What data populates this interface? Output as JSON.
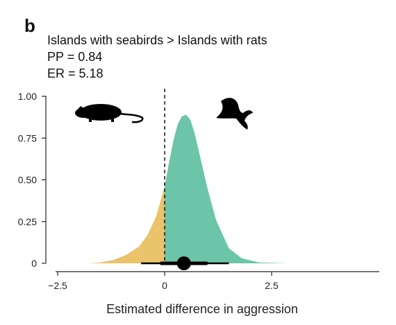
{
  "panel_label": "b",
  "annotations": {
    "title": "Islands with seabirds > Islands with rats",
    "pp": "PP = 0.84",
    "er": "ER = 5.18"
  },
  "icons": {
    "left": "rat-silhouette-icon",
    "right": "seabird-silhouette-icon"
  },
  "chart_data": {
    "type": "area",
    "title": "Islands with seabirds > Islands with rats",
    "xlabel": "Estimated difference in aggression",
    "ylabel": "",
    "xlim": [
      -2.5,
      5
    ],
    "ylim": [
      0,
      1.0
    ],
    "x_ticks": [
      -2.5,
      0,
      2.5
    ],
    "x_tick_labels": [
      "−2.5",
      "0",
      "2.5"
    ],
    "y_ticks": [
      0,
      0.25,
      0.5,
      0.75,
      1.0
    ],
    "y_tick_labels": [
      "0",
      "0.25",
      "0.50",
      "0.75",
      "1.00"
    ],
    "grid": false,
    "reference_line_x": 0,
    "colors": {
      "negative": "#EBC36B",
      "positive": "#6CC5A8",
      "interval": "#000000"
    },
    "density": {
      "x": [
        -1.8,
        -1.5,
        -1.2,
        -0.9,
        -0.6,
        -0.4,
        -0.2,
        0,
        0.1,
        0.2,
        0.3,
        0.4,
        0.5,
        0.6,
        0.7,
        0.8,
        1.0,
        1.2,
        1.5,
        1.8,
        2.2,
        2.9
      ],
      "y": [
        0,
        0.005,
        0.02,
        0.05,
        0.1,
        0.17,
        0.28,
        0.46,
        0.6,
        0.73,
        0.83,
        0.88,
        0.89,
        0.86,
        0.78,
        0.67,
        0.45,
        0.26,
        0.09,
        0.03,
        0.005,
        0
      ]
    },
    "point_estimate": 0.45,
    "interval_66": [
      -0.1,
      1.0
    ],
    "interval_95": [
      -0.55,
      1.5
    ]
  }
}
